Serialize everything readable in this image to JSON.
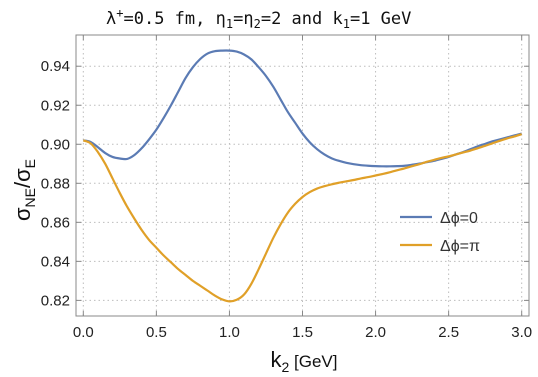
{
  "chart_data": {
    "type": "line",
    "title": "λ⁺=0.5 fm, η₁=η₂=2 and k₁=1 GeV",
    "title_parts": {
      "lambda": "λ",
      "lambda_sup": "+",
      "lambda_val": "=0.5 fm, ",
      "eta1": "η",
      "eta1_sub": "1",
      "eq1": "=",
      "eta2": "η",
      "eta2_sub": "2",
      "eta_val": "=2 and ",
      "k": "k",
      "k_sub": "1",
      "k_val": "=1 GeV"
    },
    "xlabel": "k2 [GeV]",
    "xlabel_parts": {
      "main": "k",
      "sub": "2",
      "unit": " [GeV]"
    },
    "ylabel": "σNE/σE",
    "ylabel_parts": {
      "num": "σ",
      "num_sub": "NE",
      "slash": "/",
      "den": "σ",
      "den_sub": "E"
    },
    "xlim": [
      -0.05,
      3.05
    ],
    "ylim": [
      0.812,
      0.956
    ],
    "x_ticks": [
      0.0,
      0.5,
      1.0,
      1.5,
      2.0,
      2.5,
      3.0
    ],
    "x_tick_labels": [
      "0.0",
      "0.5",
      "1.0",
      "1.5",
      "2.0",
      "2.5",
      "3.0"
    ],
    "y_ticks": [
      0.82,
      0.84,
      0.86,
      0.88,
      0.9,
      0.92,
      0.94
    ],
    "y_tick_labels": [
      "0.82",
      "0.84",
      "0.86",
      "0.88",
      "0.90",
      "0.92",
      "0.94"
    ],
    "grid": true,
    "legend_position": "center-right",
    "series": [
      {
        "name": "Δϕ=0",
        "color": "#5b7bb4",
        "x": [
          0.0,
          0.05,
          0.1,
          0.15,
          0.2,
          0.25,
          0.3,
          0.35,
          0.4,
          0.45,
          0.5,
          0.55,
          0.6,
          0.65,
          0.7,
          0.75,
          0.8,
          0.85,
          0.9,
          0.95,
          1.0,
          1.05,
          1.1,
          1.15,
          1.2,
          1.25,
          1.3,
          1.35,
          1.4,
          1.45,
          1.5,
          1.55,
          1.6,
          1.65,
          1.7,
          1.75,
          1.8,
          1.85,
          1.9,
          1.95,
          2.0,
          2.05,
          2.1,
          2.15,
          2.2,
          2.25,
          2.3,
          2.35,
          2.4,
          2.45,
          2.5,
          2.55,
          2.6,
          2.65,
          2.7,
          2.75,
          2.8,
          2.85,
          2.9,
          2.95,
          3.0
        ],
        "y": [
          0.902,
          0.9012,
          0.8985,
          0.8955,
          0.8935,
          0.8927,
          0.8925,
          0.8945,
          0.898,
          0.9025,
          0.9075,
          0.9135,
          0.92,
          0.927,
          0.934,
          0.9395,
          0.9437,
          0.9465,
          0.9477,
          0.948,
          0.948,
          0.9475,
          0.946,
          0.9435,
          0.9395,
          0.935,
          0.9295,
          0.923,
          0.9165,
          0.911,
          0.9055,
          0.901,
          0.8975,
          0.8948,
          0.8928,
          0.8915,
          0.8905,
          0.8898,
          0.8893,
          0.889,
          0.8888,
          0.8887,
          0.8887,
          0.8888,
          0.889,
          0.8895,
          0.8901,
          0.8908,
          0.8915,
          0.8925,
          0.8935,
          0.8948,
          0.896,
          0.8975,
          0.899,
          0.9002,
          0.9015,
          0.9025,
          0.9035,
          0.9045,
          0.9055
        ]
      },
      {
        "name": "Δϕ=π",
        "color": "#e0a028",
        "x": [
          0.0,
          0.05,
          0.1,
          0.15,
          0.2,
          0.25,
          0.3,
          0.35,
          0.4,
          0.45,
          0.5,
          0.55,
          0.6,
          0.65,
          0.7,
          0.75,
          0.8,
          0.85,
          0.9,
          0.95,
          1.0,
          1.05,
          1.1,
          1.15,
          1.2,
          1.25,
          1.3,
          1.35,
          1.4,
          1.45,
          1.5,
          1.55,
          1.6,
          1.65,
          1.7,
          1.75,
          1.8,
          1.85,
          1.9,
          1.95,
          2.0,
          2.05,
          2.1,
          2.15,
          2.2,
          2.25,
          2.3,
          2.35,
          2.4,
          2.45,
          2.5,
          2.55,
          2.6,
          2.65,
          2.7,
          2.75,
          2.8,
          2.85,
          2.9,
          2.95,
          3.0
        ],
        "y": [
          0.902,
          0.9005,
          0.896,
          0.89,
          0.8825,
          0.875,
          0.868,
          0.8618,
          0.856,
          0.851,
          0.847,
          0.843,
          0.8395,
          0.836,
          0.833,
          0.83,
          0.8275,
          0.825,
          0.8225,
          0.8205,
          0.8195,
          0.8203,
          0.823,
          0.8285,
          0.836,
          0.844,
          0.852,
          0.859,
          0.865,
          0.8695,
          0.873,
          0.8755,
          0.8773,
          0.8785,
          0.8795,
          0.8803,
          0.881,
          0.8817,
          0.8825,
          0.8832,
          0.884,
          0.8848,
          0.8857,
          0.8867,
          0.8877,
          0.8888,
          0.8898,
          0.891,
          0.892,
          0.893,
          0.8938,
          0.8948,
          0.8958,
          0.8968,
          0.898,
          0.8992,
          0.9005,
          0.9018,
          0.903,
          0.904,
          0.9052
        ]
      }
    ]
  }
}
